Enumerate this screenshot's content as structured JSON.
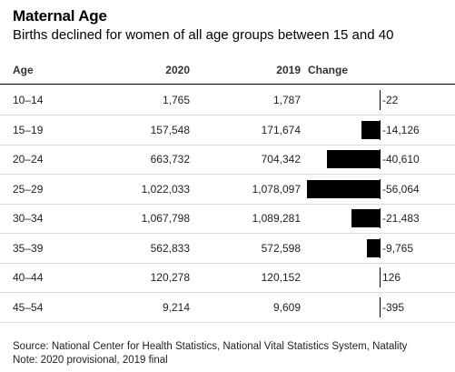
{
  "title": "Maternal Age",
  "subtitle": "Births declined for women of all age groups between 15 and 40",
  "headers": {
    "age": "Age",
    "y2020": "2020",
    "y2019": "2019",
    "change": "Change"
  },
  "chart_data": {
    "type": "table",
    "columns": [
      "Age",
      "2020",
      "2019",
      "Change"
    ],
    "rows": [
      {
        "age": "10–14",
        "v2020": "1,765",
        "v2019": "1,787",
        "change": -22,
        "change_label": "-22"
      },
      {
        "age": "15–19",
        "v2020": "157,548",
        "v2019": "171,674",
        "change": -14126,
        "change_label": "-14,126"
      },
      {
        "age": "20–24",
        "v2020": "663,732",
        "v2019": "704,342",
        "change": -40610,
        "change_label": "-40,610"
      },
      {
        "age": "25–29",
        "v2020": "1,022,033",
        "v2019": "1,078,097",
        "change": -56064,
        "change_label": "-56,064"
      },
      {
        "age": "30–34",
        "v2020": "1,067,798",
        "v2019": "1,089,281",
        "change": -21483,
        "change_label": "-21,483"
      },
      {
        "age": "35–39",
        "v2020": "562,833",
        "v2019": "572,598",
        "change": -9765,
        "change_label": "-9,765"
      },
      {
        "age": "40–44",
        "v2020": "120,278",
        "v2019": "120,152",
        "change": 126,
        "change_label": "126"
      },
      {
        "age": "45–54",
        "v2020": "9,214",
        "v2019": "9,609",
        "change": -395,
        "change_label": "-395"
      }
    ]
  },
  "footer": {
    "source": "Source: National Center for Health Statistics, National Vital Statistics System, Natality",
    "note": "Note: 2020 provisional, 2019 final"
  }
}
